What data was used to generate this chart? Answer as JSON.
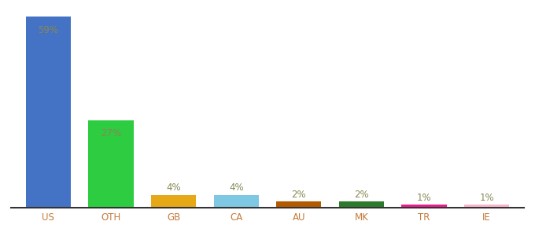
{
  "categories": [
    "US",
    "OTH",
    "GB",
    "CA",
    "AU",
    "MK",
    "TR",
    "IE"
  ],
  "values": [
    59,
    27,
    4,
    4,
    2,
    2,
    1,
    1
  ],
  "bar_colors": [
    "#4472c4",
    "#2ecc40",
    "#e6a817",
    "#7ec8e3",
    "#b35a00",
    "#2d7a2d",
    "#e91e8c",
    "#f8b4c8"
  ],
  "labels": [
    "59%",
    "27%",
    "4%",
    "4%",
    "2%",
    "2%",
    "1%",
    "1%"
  ],
  "ylim": [
    0,
    62
  ],
  "background_color": "#ffffff",
  "label_color": "#888855",
  "tick_label_color": "#c47a3a",
  "bar_width": 0.72
}
